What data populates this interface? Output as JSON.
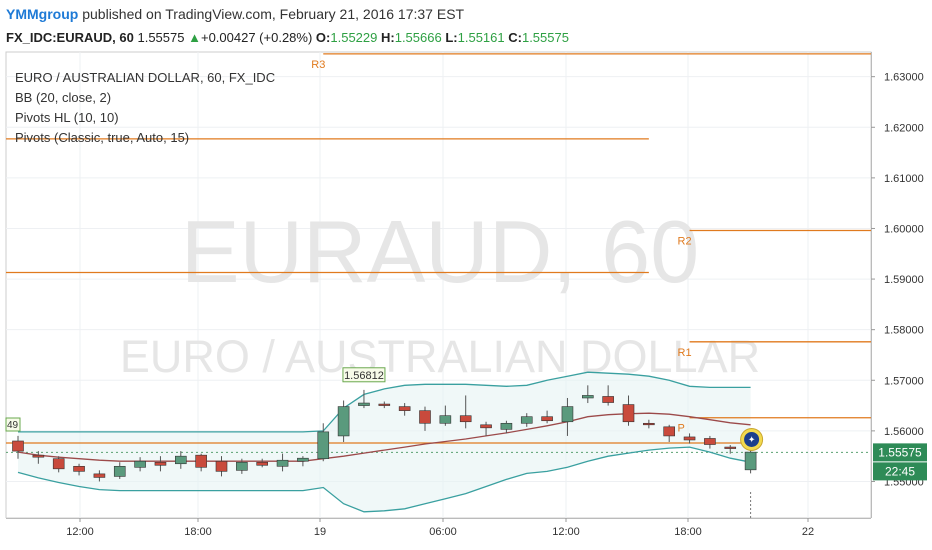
{
  "header": {
    "author": "YMMgroup",
    "published": "published on TradingView.com, February 21, 2016 17:37 EST",
    "symbol": "FX_IDC:EURAUD, 60",
    "last": "1.55575",
    "change": "+0.00427 (+0.28%)",
    "o_label": "O:",
    "o_value": "1.55229",
    "h_label": "H:",
    "h_value": "1.55666",
    "l_label": "L:",
    "l_value": "1.55161",
    "c_label": "C:",
    "c_value": "1.55575"
  },
  "legend": {
    "title": "EURO / AUSTRALIAN DOLLAR, 60, FX_IDC",
    "items": [
      "BB (20, close, 2)",
      "Pivots HL (10, 10)",
      "Pivots (Classic, true, Auto, 15)"
    ]
  },
  "watermark": {
    "symbol": "EURAUD, 60",
    "name": "EURO / AUSTRALIAN DOLLAR"
  },
  "colors": {
    "up": "#5a9a7d",
    "down": "#c94a3c",
    "bb_band": "#3aa0a0",
    "bb_basis": "#9c4a4a",
    "pivot": "#e07a1e",
    "badge_bg": "#2e8b57"
  },
  "chart_data": {
    "type": "candlestick",
    "y_axis": {
      "range": [
        1.545,
        1.635
      ],
      "ticks": [
        "1.63000",
        "1.62000",
        "1.61000",
        "1.60000",
        "1.59000",
        "1.58000",
        "1.57000",
        "1.56000",
        "1.55575",
        "1.55000"
      ]
    },
    "x_axis": {
      "ticks": [
        "12:00",
        "18:00",
        "19",
        "06:00",
        "12:00",
        "18:00",
        "22"
      ]
    },
    "candles": [
      {
        "o": 1.558,
        "h": 1.559,
        "l": 1.5545,
        "c": 1.556
      },
      {
        "o": 1.5552,
        "h": 1.556,
        "l": 1.5535,
        "c": 1.5548
      },
      {
        "o": 1.5545,
        "h": 1.555,
        "l": 1.5518,
        "c": 1.5525
      },
      {
        "o": 1.553,
        "h": 1.5535,
        "l": 1.5512,
        "c": 1.552
      },
      {
        "o": 1.5515,
        "h": 1.5522,
        "l": 1.55,
        "c": 1.5508
      },
      {
        "o": 1.551,
        "h": 1.5538,
        "l": 1.5505,
        "c": 1.553
      },
      {
        "o": 1.5528,
        "h": 1.5548,
        "l": 1.552,
        "c": 1.554
      },
      {
        "o": 1.5538,
        "h": 1.555,
        "l": 1.552,
        "c": 1.5532
      },
      {
        "o": 1.5535,
        "h": 1.556,
        "l": 1.5525,
        "c": 1.555
      },
      {
        "o": 1.5552,
        "h": 1.5555,
        "l": 1.552,
        "c": 1.5528
      },
      {
        "o": 1.554,
        "h": 1.555,
        "l": 1.551,
        "c": 1.552
      },
      {
        "o": 1.5522,
        "h": 1.5545,
        "l": 1.5515,
        "c": 1.5538
      },
      {
        "o": 1.5538,
        "h": 1.5545,
        "l": 1.5528,
        "c": 1.5532
      },
      {
        "o": 1.553,
        "h": 1.5555,
        "l": 1.552,
        "c": 1.5542
      },
      {
        "o": 1.554,
        "h": 1.555,
        "l": 1.553,
        "c": 1.5546
      },
      {
        "o": 1.5545,
        "h": 1.5615,
        "l": 1.554,
        "c": 1.5598
      },
      {
        "o": 1.559,
        "h": 1.566,
        "l": 1.5578,
        "c": 1.5648
      },
      {
        "o": 1.565,
        "h": 1.5681,
        "l": 1.5645,
        "c": 1.5655
      },
      {
        "o": 1.5653,
        "h": 1.5658,
        "l": 1.5645,
        "c": 1.565
      },
      {
        "o": 1.5648,
        "h": 1.5655,
        "l": 1.563,
        "c": 1.564
      },
      {
        "o": 1.564,
        "h": 1.5648,
        "l": 1.56,
        "c": 1.5615
      },
      {
        "o": 1.5615,
        "h": 1.565,
        "l": 1.561,
        "c": 1.563
      },
      {
        "o": 1.563,
        "h": 1.567,
        "l": 1.5605,
        "c": 1.5618
      },
      {
        "o": 1.5612,
        "h": 1.5618,
        "l": 1.559,
        "c": 1.5606
      },
      {
        "o": 1.5603,
        "h": 1.562,
        "l": 1.5595,
        "c": 1.5615
      },
      {
        "o": 1.5615,
        "h": 1.5635,
        "l": 1.5608,
        "c": 1.5628
      },
      {
        "o": 1.5628,
        "h": 1.564,
        "l": 1.5615,
        "c": 1.562
      },
      {
        "o": 1.5618,
        "h": 1.5665,
        "l": 1.559,
        "c": 1.5648
      },
      {
        "o": 1.5665,
        "h": 1.569,
        "l": 1.5655,
        "c": 1.567
      },
      {
        "o": 1.5668,
        "h": 1.569,
        "l": 1.565,
        "c": 1.5656
      },
      {
        "o": 1.5652,
        "h": 1.567,
        "l": 1.561,
        "c": 1.5618
      },
      {
        "o": 1.5615,
        "h": 1.5622,
        "l": 1.5605,
        "c": 1.5612
      },
      {
        "o": 1.5608,
        "h": 1.5612,
        "l": 1.5578,
        "c": 1.559
      },
      {
        "o": 1.5588,
        "h": 1.5595,
        "l": 1.5575,
        "c": 1.5582
      },
      {
        "o": 1.5585,
        "h": 1.559,
        "l": 1.5565,
        "c": 1.5573
      },
      {
        "o": 1.5568,
        "h": 1.5572,
        "l": 1.5555,
        "c": 1.5565
      },
      {
        "o": 1.5523,
        "h": 1.5567,
        "l": 1.5516,
        "c": 1.5558
      }
    ],
    "bb_upper": [
      1.5598,
      1.5598,
      1.5598,
      1.5598,
      1.5598,
      1.5598,
      1.5598,
      1.5598,
      1.5598,
      1.5598,
      1.5598,
      1.5598,
      1.5598,
      1.5598,
      1.5598,
      1.56,
      1.5645,
      1.5672,
      1.5683,
      1.569,
      1.5692,
      1.5692,
      1.5692,
      1.569,
      1.5688,
      1.569,
      1.57,
      1.5708,
      1.5716,
      1.5714,
      1.5712,
      1.5708,
      1.57,
      1.5688,
      1.5686,
      1.5686,
      1.5686
    ],
    "bb_basis": [
      1.5558,
      1.5552,
      1.5548,
      1.5545,
      1.5542,
      1.554,
      1.554,
      1.554,
      1.554,
      1.554,
      1.554,
      1.554,
      1.554,
      1.554,
      1.554,
      1.5545,
      1.555,
      1.5556,
      1.5562,
      1.5568,
      1.5574,
      1.5579,
      1.5584,
      1.559,
      1.5596,
      1.5603,
      1.561,
      1.5618,
      1.5628,
      1.5632,
      1.5634,
      1.5635,
      1.5633,
      1.5628,
      1.5622,
      1.5616,
      1.5612
    ],
    "bb_lower": [
      1.5518,
      1.5507,
      1.5498,
      1.549,
      1.5484,
      1.5482,
      1.5482,
      1.5482,
      1.5482,
      1.5482,
      1.5482,
      1.5482,
      1.5482,
      1.5482,
      1.5482,
      1.5488,
      1.5456,
      1.544,
      1.5442,
      1.5446,
      1.5456,
      1.5466,
      1.5476,
      1.549,
      1.5504,
      1.5516,
      1.552,
      1.5528,
      1.554,
      1.555,
      1.5556,
      1.5562,
      1.5566,
      1.5568,
      1.5558,
      1.5546,
      1.5538
    ],
    "pivots": [
      {
        "label": "R3",
        "value": 1.6345,
        "x_from": 15,
        "x_to": 46
      },
      {
        "label": "R2",
        "value": 1.5996,
        "x_from": 33,
        "x_to": 46
      },
      {
        "label": "R1",
        "value": 1.5776,
        "x_from": 33,
        "x_to": 46
      },
      {
        "label": "P",
        "value": 1.5626,
        "x_from": 33,
        "x_to": 46
      }
    ],
    "hl_lines": [
      {
        "value": 1.6177,
        "x_from": -1,
        "x_to": 31
      },
      {
        "value": 1.5913,
        "x_from": -1,
        "x_to": 31
      }
    ],
    "pivot_high": {
      "value": "1.56812",
      "index": 17
    },
    "left_marker": "49",
    "last_price_badge": "1.55575",
    "time_badge": "22:45"
  }
}
